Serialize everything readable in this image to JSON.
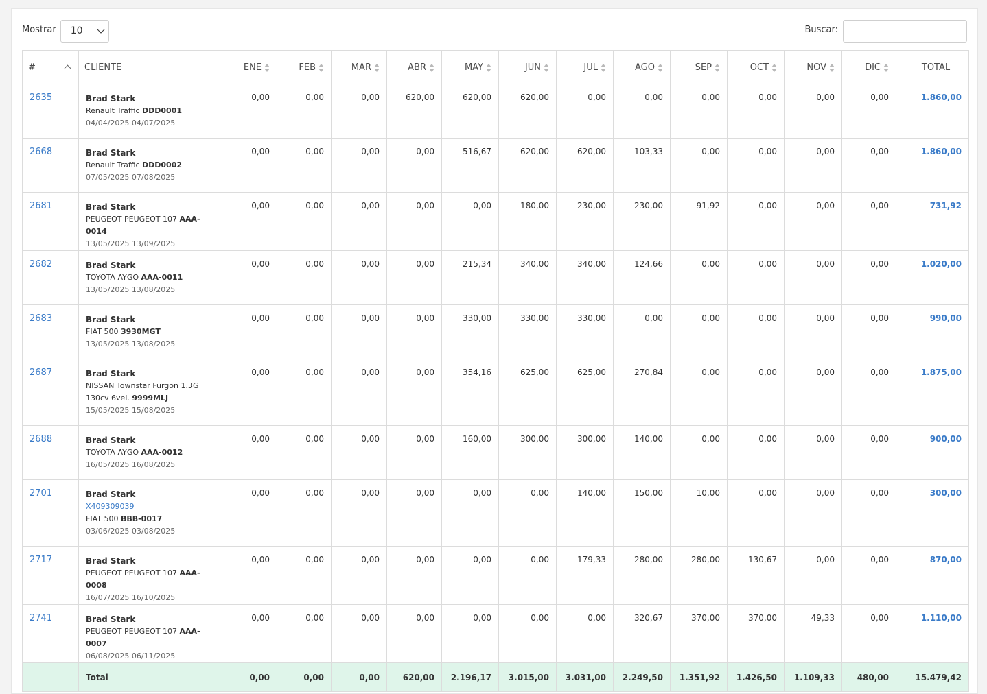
{
  "controls": {
    "show_label": "Mostrar",
    "show_value": "10",
    "search_label": "Buscar:",
    "search_value": ""
  },
  "table": {
    "headers": [
      "#",
      "CLIENTE",
      "ENE",
      "FEB",
      "MAR",
      "ABR",
      "MAY",
      "JUN",
      "JUL",
      "AGO",
      "SEP",
      "OCT",
      "NOV",
      "DIC",
      "TOTAL"
    ],
    "rows": [
      {
        "id": "2635",
        "name": "Brad Stark",
        "ref": "",
        "vehicle": "Renault Traffic",
        "plate": "DDD0001",
        "dates": "04/04/2025 04/07/2025",
        "months": [
          "0,00",
          "0,00",
          "0,00",
          "620,00",
          "620,00",
          "620,00",
          "0,00",
          "0,00",
          "0,00",
          "0,00",
          "0,00",
          "0,00"
        ],
        "total": "1.860,00"
      },
      {
        "id": "2668",
        "name": "Brad Stark",
        "ref": "",
        "vehicle": "Renault Traffic",
        "plate": "DDD0002",
        "dates": "07/05/2025 07/08/2025",
        "months": [
          "0,00",
          "0,00",
          "0,00",
          "0,00",
          "516,67",
          "620,00",
          "620,00",
          "103,33",
          "0,00",
          "0,00",
          "0,00",
          "0,00"
        ],
        "total": "1.860,00"
      },
      {
        "id": "2681",
        "name": "Brad Stark",
        "ref": "",
        "vehicle": "PEUGEOT PEUGEOT 107",
        "plate": "AAA-0014",
        "dates": "13/05/2025 13/09/2025",
        "months": [
          "0,00",
          "0,00",
          "0,00",
          "0,00",
          "0,00",
          "180,00",
          "230,00",
          "230,00",
          "91,92",
          "0,00",
          "0,00",
          "0,00"
        ],
        "total": "731,92"
      },
      {
        "id": "2682",
        "name": "Brad Stark",
        "ref": "",
        "vehicle": "TOYOTA AYGO",
        "plate": "AAA-0011",
        "dates": "13/05/2025 13/08/2025",
        "months": [
          "0,00",
          "0,00",
          "0,00",
          "0,00",
          "215,34",
          "340,00",
          "340,00",
          "124,66",
          "0,00",
          "0,00",
          "0,00",
          "0,00"
        ],
        "total": "1.020,00"
      },
      {
        "id": "2683",
        "name": "Brad Stark",
        "ref": "",
        "vehicle": "FIAT 500",
        "plate": "3930MGT",
        "dates": "13/05/2025 13/08/2025",
        "months": [
          "0,00",
          "0,00",
          "0,00",
          "0,00",
          "330,00",
          "330,00",
          "330,00",
          "0,00",
          "0,00",
          "0,00",
          "0,00",
          "0,00"
        ],
        "total": "990,00"
      },
      {
        "id": "2687",
        "name": "Brad Stark",
        "ref": "",
        "vehicle": "NISSAN Townstar Furgon 1.3G 130cv 6vel.",
        "plate": "9999MLJ",
        "dates": "15/05/2025 15/08/2025",
        "months": [
          "0,00",
          "0,00",
          "0,00",
          "0,00",
          "354,16",
          "625,00",
          "625,00",
          "270,84",
          "0,00",
          "0,00",
          "0,00",
          "0,00"
        ],
        "total": "1.875,00"
      },
      {
        "id": "2688",
        "name": "Brad Stark",
        "ref": "",
        "vehicle": "TOYOTA AYGO",
        "plate": "AAA-0012",
        "dates": "16/05/2025 16/08/2025",
        "months": [
          "0,00",
          "0,00",
          "0,00",
          "0,00",
          "160,00",
          "300,00",
          "300,00",
          "140,00",
          "0,00",
          "0,00",
          "0,00",
          "0,00"
        ],
        "total": "900,00"
      },
      {
        "id": "2701",
        "name": "Brad Stark",
        "ref": "X409309039",
        "vehicle": "FIAT 500",
        "plate": "BBB-0017",
        "dates": "03/06/2025 03/08/2025",
        "months": [
          "0,00",
          "0,00",
          "0,00",
          "0,00",
          "0,00",
          "0,00",
          "140,00",
          "150,00",
          "10,00",
          "0,00",
          "0,00",
          "0,00"
        ],
        "total": "300,00"
      },
      {
        "id": "2717",
        "name": "Brad Stark",
        "ref": "",
        "vehicle": "PEUGEOT PEUGEOT 107",
        "plate": "AAA-0008",
        "dates": "16/07/2025 16/10/2025",
        "months": [
          "0,00",
          "0,00",
          "0,00",
          "0,00",
          "0,00",
          "0,00",
          "179,33",
          "280,00",
          "280,00",
          "130,67",
          "0,00",
          "0,00"
        ],
        "total": "870,00"
      },
      {
        "id": "2741",
        "name": "Brad Stark",
        "ref": "",
        "vehicle": "PEUGEOT PEUGEOT 107",
        "plate": "AAA-0007",
        "dates": "06/08/2025 06/11/2025",
        "months": [
          "0,00",
          "0,00",
          "0,00",
          "0,00",
          "0,00",
          "0,00",
          "0,00",
          "320,67",
          "370,00",
          "370,00",
          "49,33",
          "0,00"
        ],
        "total": "1.110,00"
      }
    ],
    "footer": {
      "label": "Total",
      "months": [
        "0,00",
        "0,00",
        "0,00",
        "620,00",
        "2.196,17",
        "3.015,00",
        "3.031,00",
        "2.249,50",
        "1.351,92",
        "1.426,50",
        "1.109,33",
        "480,00"
      ],
      "total": "15.479,42"
    }
  }
}
